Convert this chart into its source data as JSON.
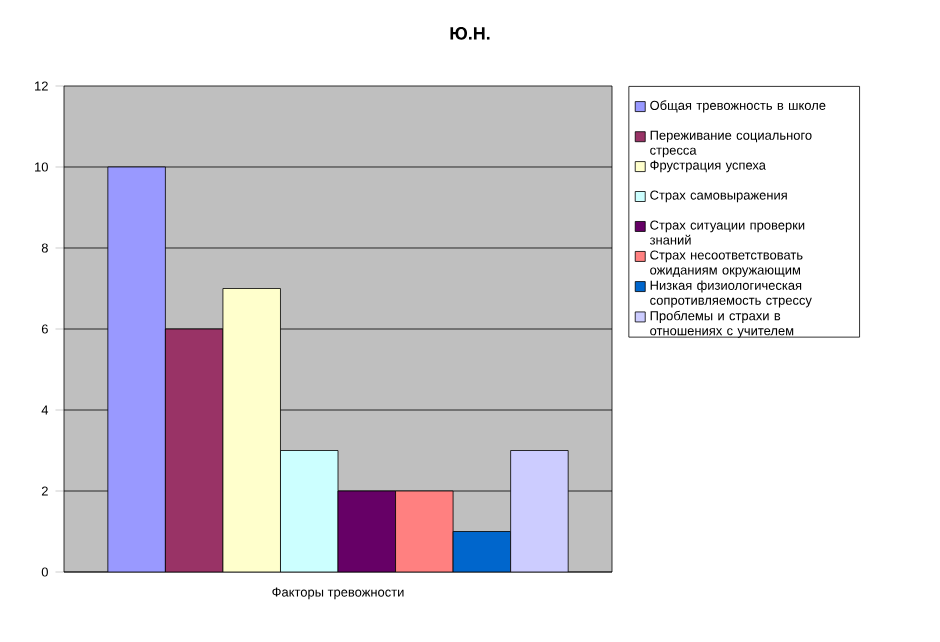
{
  "chart_data": {
    "type": "bar",
    "title": "Ю.Н.",
    "categories": [
      "Факторы тревожности"
    ],
    "series": [
      {
        "name": "Общая тревожность в школе",
        "color": "#9999ff",
        "values": [
          10
        ]
      },
      {
        "name": "Переживание социального стресса",
        "color": "#993366",
        "values": [
          6
        ]
      },
      {
        "name": "Фрустрация успеха",
        "color": "#ffffcc",
        "values": [
          7
        ]
      },
      {
        "name": "Страх самовыражения",
        "color": "#ccffff",
        "values": [
          3
        ]
      },
      {
        "name": "Страх ситуации проверки знаний",
        "color": "#660066",
        "values": [
          2
        ]
      },
      {
        "name": "Страх несоответствовать ожиданиям окружающим",
        "color": "#ff8080",
        "values": [
          2
        ]
      },
      {
        "name": "Низкая физиологическая сопротивляемость стрессу",
        "color": "#0066cc",
        "values": [
          1
        ]
      },
      {
        "name": "Проблемы и страхи в отношениях с учителем",
        "color": "#ccccff",
        "values": [
          3
        ]
      }
    ],
    "ylim": [
      0,
      12
    ],
    "yticks": [
      0,
      2,
      4,
      6,
      8,
      10,
      12
    ],
    "grid": "y",
    "legend": "right"
  }
}
